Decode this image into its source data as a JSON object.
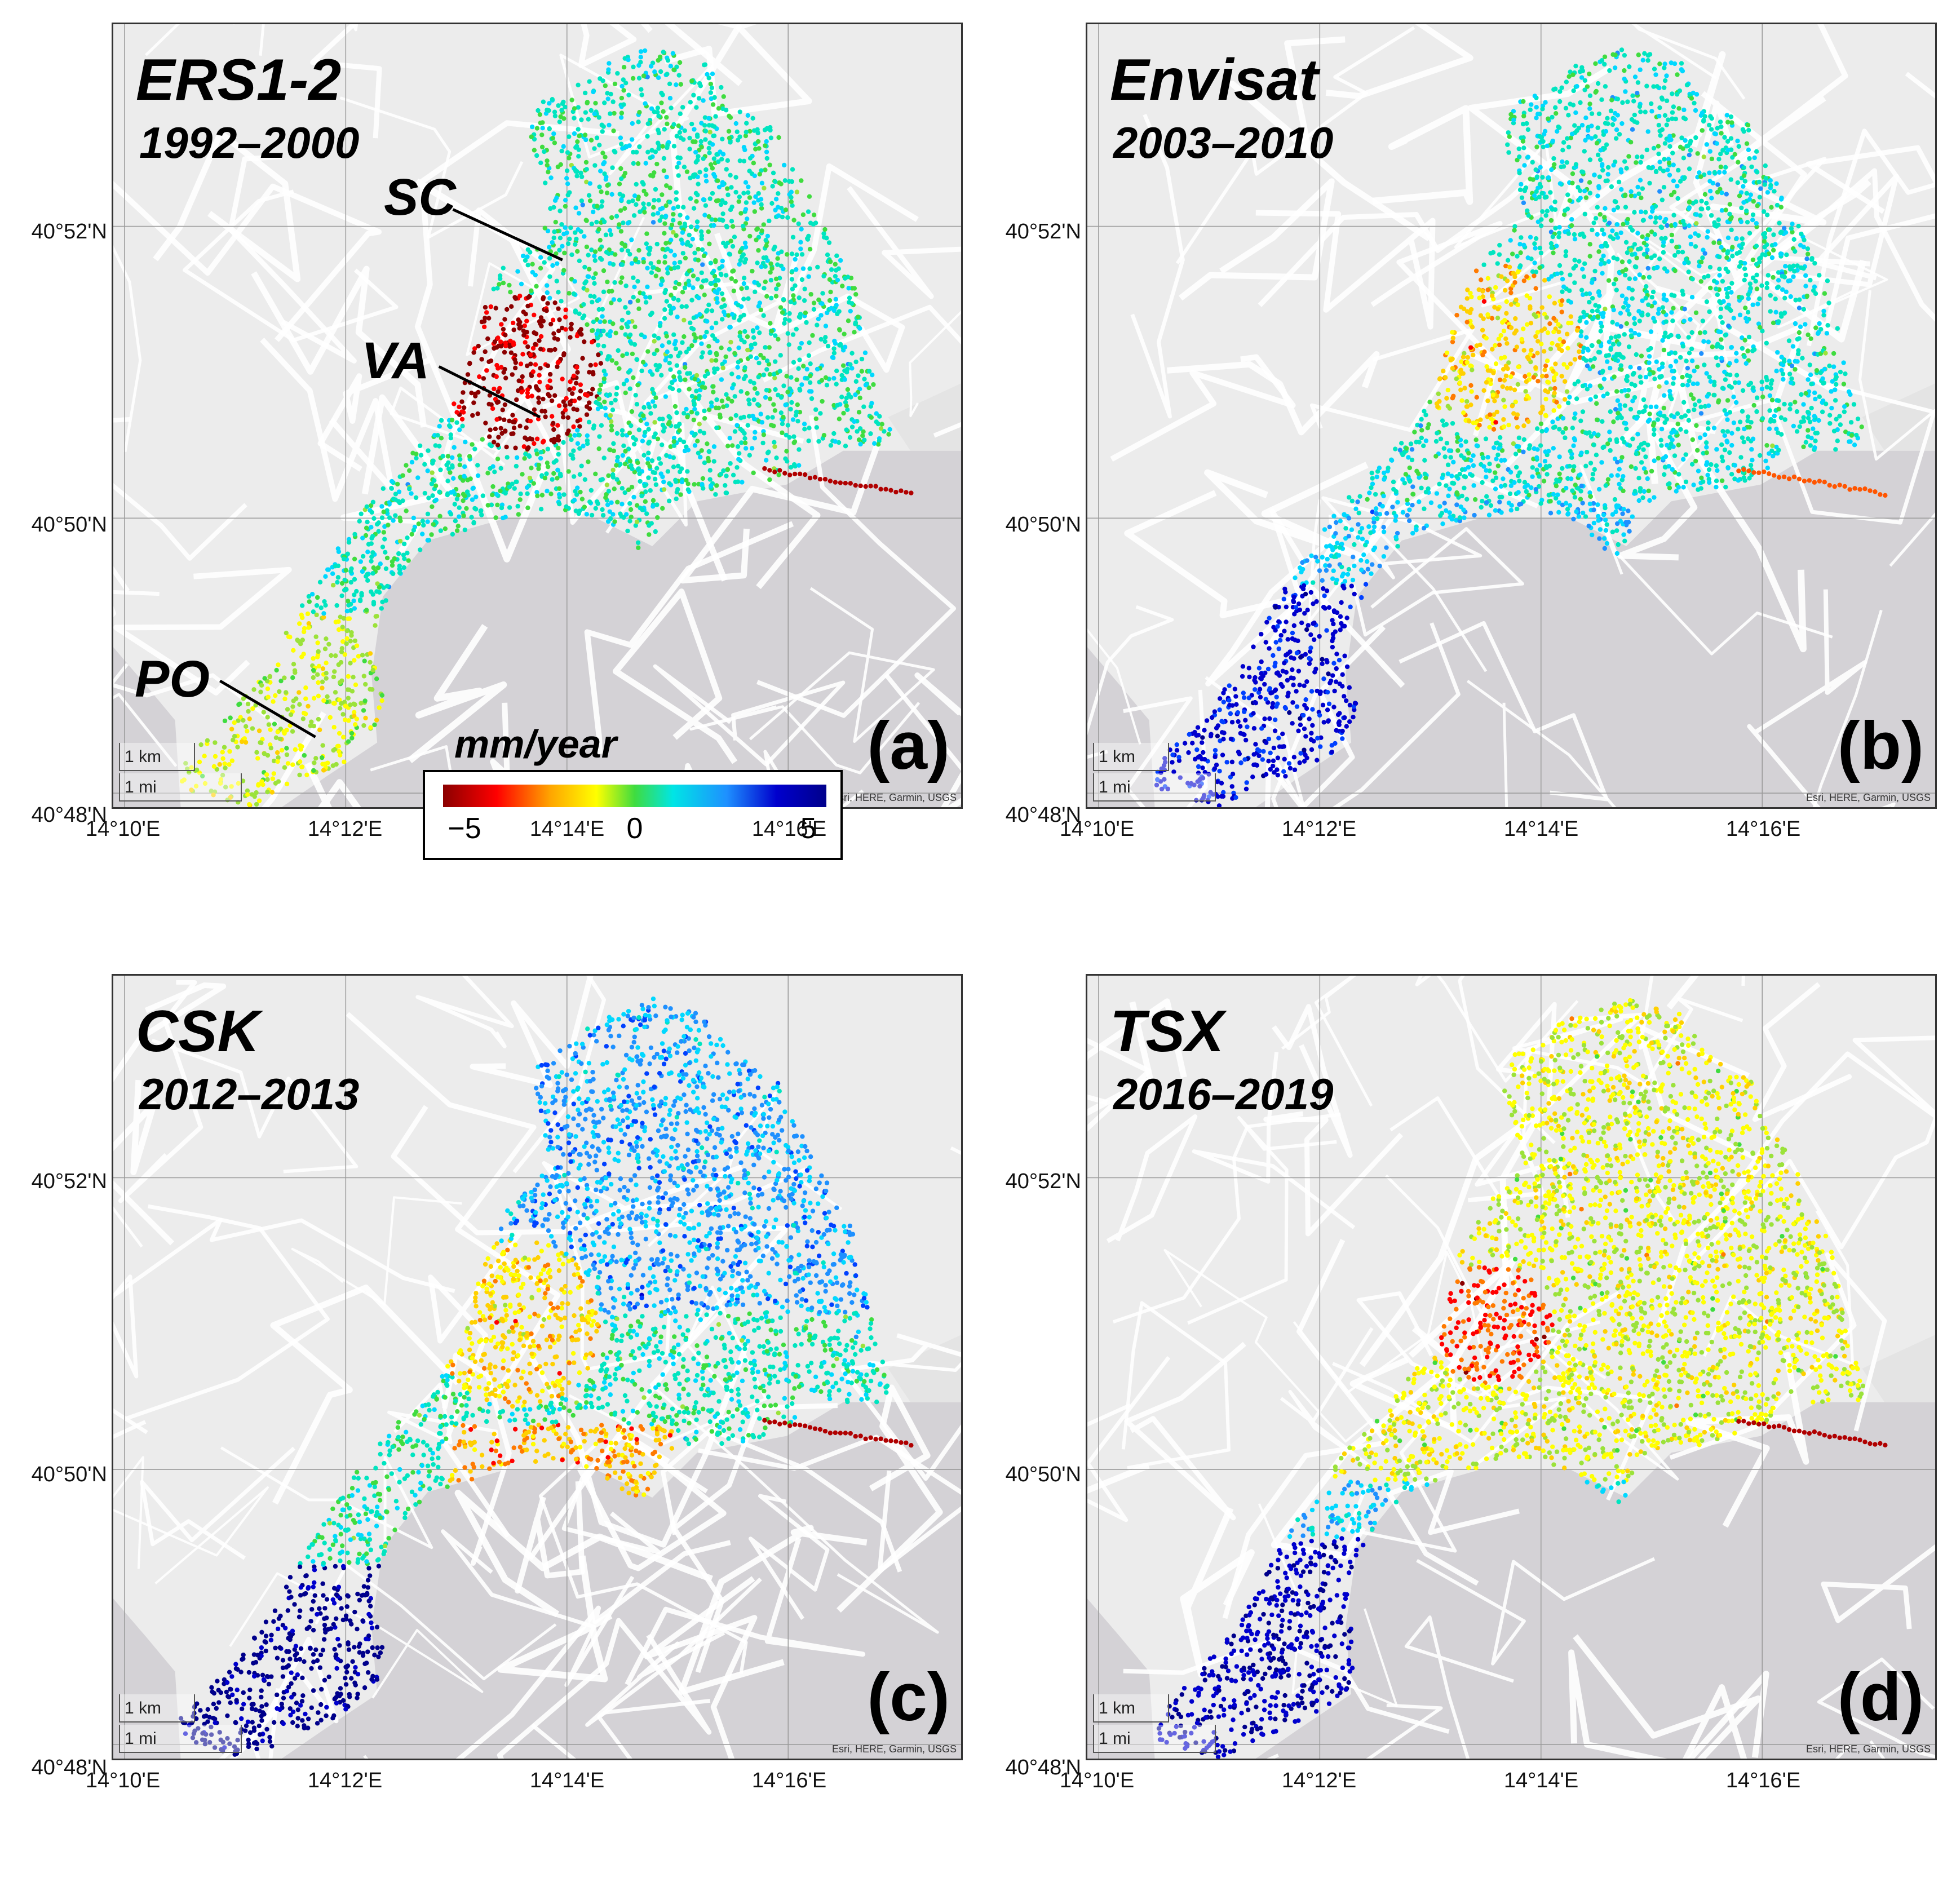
{
  "panels": [
    {
      "title": "ERS1-2",
      "years": "1992–2000",
      "letter": "(a)",
      "palette": "ers"
    },
    {
      "title": "Envisat",
      "years": "2003–2010",
      "letter": "(b)",
      "palette": "env"
    },
    {
      "title": "CSK",
      "years": "2012–2013",
      "letter": "(c)",
      "palette": "csk"
    },
    {
      "title": "TSX",
      "years": "2016–2019",
      "letter": "(d)",
      "palette": "tsx"
    }
  ],
  "lat_labels": [
    "40°52'N",
    "40°50'N",
    "40°48'N"
  ],
  "lon_labels": [
    "14°10'E",
    "14°12'E",
    "14°14'E",
    "14°16'E"
  ],
  "scalebar": {
    "km": "1 km",
    "mi": "1 mi"
  },
  "attribution": "Esri, HERE, Garmin, USGS",
  "annotations": {
    "sc": "SC",
    "va": "VA",
    "po": "PO"
  },
  "legend": {
    "title": "mm/year",
    "min": "−5",
    "mid": "0",
    "max": "5"
  },
  "colors": {
    "sea": "#d4d2d6",
    "land": "#ececec",
    "road": "#ffffff"
  }
}
